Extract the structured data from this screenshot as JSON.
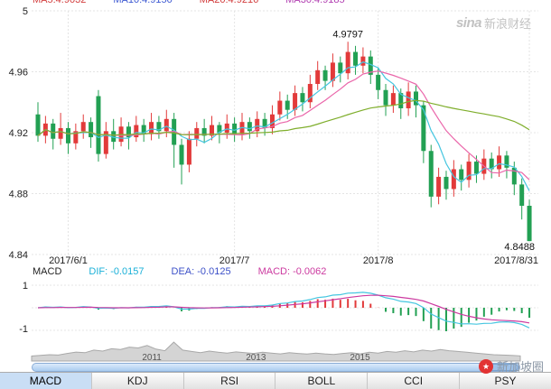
{
  "watermarks": {
    "sina": {
      "logo": "sina",
      "text": "新浪财经"
    },
    "bottom_right": {
      "text": "新加坡圈"
    }
  },
  "header": {
    "ma_labels": [
      {
        "text": "MA5:4.9032",
        "color": "#d23c3c"
      },
      {
        "text": "MA10:4.9150",
        "color": "#3c58d2"
      },
      {
        "text": "MA20:4.9216",
        "color": "#d23c3c"
      },
      {
        "text": "MA30:4.9185",
        "color": "#b03cb0"
      }
    ]
  },
  "indicator_row": {
    "name": "MACD",
    "values": [
      {
        "label": "DIF: -0.0157",
        "color": "#1ab0d8"
      },
      {
        "label": "DEA: -0.0125",
        "color": "#3c50c8"
      },
      {
        "label": "MACD: -0.0062",
        "color": "#cc3aa0"
      }
    ]
  },
  "chart_data": [
    {
      "type": "candlestick",
      "title": "",
      "ylim": [
        4.84,
        5.0
      ],
      "yticks": [
        {
          "label": "5",
          "value": 5.0
        },
        {
          "label": "4.96",
          "value": 4.96
        },
        {
          "label": "4.92",
          "value": 4.92
        },
        {
          "label": "4.88",
          "value": 4.88
        },
        {
          "label": "4.84",
          "value": 4.84
        }
      ],
      "xticks": [
        {
          "label": "2017/6/1",
          "index": 4
        },
        {
          "label": "2017/7",
          "index": 26
        },
        {
          "label": "2017/8",
          "index": 45
        },
        {
          "label": "2017/8/31",
          "index": 65
        }
      ],
      "annotations": [
        {
          "text": "4.9797",
          "index": 41,
          "pos": "high"
        },
        {
          "text": "4.8488",
          "index": 65,
          "pos": "low"
        }
      ],
      "colors": {
        "up": "#e23a3a",
        "down": "#22a053",
        "ma5": "#45c6e0",
        "ma10": "#ea66aa",
        "ma30": "#7fae2c"
      },
      "ma_windows": [
        5,
        10,
        30
      ],
      "candles": [
        [
          4.932,
          4.94,
          4.914,
          4.918
        ],
        [
          4.918,
          4.931,
          4.913,
          4.926
        ],
        [
          4.926,
          4.929,
          4.909,
          4.916
        ],
        [
          4.916,
          4.933,
          4.912,
          4.923
        ],
        [
          4.923,
          4.927,
          4.906,
          4.913
        ],
        [
          4.913,
          4.926,
          4.909,
          4.921
        ],
        [
          4.921,
          4.932,
          4.916,
          4.927
        ],
        [
          4.927,
          4.93,
          4.91,
          4.917
        ],
        [
          4.944,
          4.948,
          4.901,
          4.906
        ],
        [
          4.906,
          4.927,
          4.903,
          4.921
        ],
        [
          4.921,
          4.929,
          4.909,
          4.914
        ],
        [
          4.914,
          4.93,
          4.911,
          4.924
        ],
        [
          4.924,
          4.927,
          4.909,
          4.917
        ],
        [
          4.917,
          4.931,
          4.914,
          4.925
        ],
        [
          4.925,
          4.929,
          4.914,
          4.919
        ],
        [
          4.919,
          4.933,
          4.915,
          4.927
        ],
        [
          4.927,
          4.931,
          4.916,
          4.921
        ],
        [
          4.921,
          4.935,
          4.917,
          4.929
        ],
        [
          4.929,
          4.933,
          4.897,
          4.912
        ],
        [
          4.912,
          4.916,
          4.886,
          4.899
        ],
        [
          4.899,
          4.921,
          4.894,
          4.916
        ],
        [
          4.916,
          4.927,
          4.911,
          4.923
        ],
        [
          4.923,
          4.929,
          4.913,
          4.918
        ],
        [
          4.918,
          4.931,
          4.915,
          4.925
        ],
        [
          4.925,
          4.927,
          4.913,
          4.92
        ],
        [
          4.92,
          4.932,
          4.916,
          4.926
        ],
        [
          4.926,
          4.93,
          4.914,
          4.919
        ],
        [
          4.919,
          4.933,
          4.915,
          4.927
        ],
        [
          4.927,
          4.93,
          4.916,
          4.921
        ],
        [
          4.921,
          4.934,
          4.917,
          4.929
        ],
        [
          4.929,
          4.933,
          4.918,
          4.923
        ],
        [
          4.923,
          4.938,
          4.919,
          4.932
        ],
        [
          4.932,
          4.947,
          4.928,
          4.941
        ],
        [
          4.941,
          4.945,
          4.929,
          4.935
        ],
        [
          4.935,
          4.951,
          4.931,
          4.946
        ],
        [
          4.946,
          4.95,
          4.934,
          4.94
        ],
        [
          4.94,
          4.958,
          4.936,
          4.952
        ],
        [
          4.952,
          4.967,
          4.948,
          4.961
        ],
        [
          4.961,
          4.964,
          4.948,
          4.954
        ],
        [
          4.954,
          4.972,
          4.95,
          4.966
        ],
        [
          4.966,
          4.97,
          4.953,
          4.959
        ],
        [
          4.959,
          4.9797,
          4.955,
          4.973
        ],
        [
          4.973,
          4.977,
          4.958,
          4.964
        ],
        [
          4.964,
          4.976,
          4.959,
          4.97
        ],
        [
          4.97,
          4.974,
          4.952,
          4.958
        ],
        [
          4.958,
          4.963,
          4.942,
          4.948
        ],
        [
          4.948,
          4.952,
          4.931,
          4.938
        ],
        [
          4.938,
          4.951,
          4.933,
          4.946
        ],
        [
          4.946,
          4.949,
          4.929,
          4.936
        ],
        [
          4.936,
          4.953,
          4.931,
          4.947
        ],
        [
          4.947,
          4.951,
          4.93,
          4.938
        ],
        [
          4.938,
          4.941,
          4.9,
          4.908
        ],
        [
          4.908,
          4.912,
          4.871,
          4.878
        ],
        [
          4.878,
          4.897,
          4.873,
          4.891
        ],
        [
          4.891,
          4.895,
          4.876,
          4.883
        ],
        [
          4.883,
          4.902,
          4.878,
          4.896
        ],
        [
          4.896,
          4.899,
          4.882,
          4.889
        ],
        [
          4.889,
          4.906,
          4.884,
          4.901
        ],
        [
          4.901,
          4.905,
          4.887,
          4.893
        ],
        [
          4.893,
          4.909,
          4.889,
          4.903
        ],
        [
          4.903,
          4.907,
          4.89,
          4.896
        ],
        [
          4.896,
          4.911,
          4.891,
          4.905
        ],
        [
          4.905,
          4.908,
          4.89,
          4.897
        ],
        [
          4.897,
          4.901,
          4.879,
          4.886
        ],
        [
          4.886,
          4.89,
          4.863,
          4.872
        ],
        [
          4.872,
          4.876,
          4.8488,
          4.8488
        ]
      ]
    },
    {
      "type": "bar",
      "name": "MACD",
      "yticks": [
        "1",
        "-1"
      ],
      "latest": {
        "DIF": -0.0157,
        "DEA": -0.0125,
        "MACD": -0.0062
      },
      "colors": {
        "pos": "#e23a3a",
        "neg": "#22a053",
        "dif": "#45c6e0",
        "dea": "#cc3aa0"
      }
    },
    {
      "type": "area",
      "name": "navigator",
      "xticks": [
        {
          "label": "2011",
          "pos": 0.246
        },
        {
          "label": "2013",
          "pos": 0.459
        },
        {
          "label": "2015",
          "pos": 0.672
        }
      ],
      "values": [
        0.25,
        0.28,
        0.32,
        0.3,
        0.38,
        0.45,
        0.42,
        0.55,
        0.5,
        0.62,
        0.58,
        0.7,
        0.66,
        0.78,
        0.6,
        0.52,
        0.95,
        0.55,
        0.48,
        0.42,
        0.5,
        0.44,
        0.4,
        0.46,
        0.42,
        0.38,
        0.44,
        0.4,
        0.36,
        0.42,
        0.38,
        0.35,
        0.4,
        0.36,
        0.33,
        0.38,
        0.42,
        0.36,
        0.44,
        0.4,
        0.48,
        0.44,
        0.52,
        0.46,
        0.55,
        0.5,
        0.58,
        0.52,
        0.48,
        0.44,
        0.4,
        0.36,
        0.32,
        0.3,
        0.28,
        0.26
      ]
    }
  ],
  "tabs": [
    {
      "label": "MACD",
      "active": true
    },
    {
      "label": "KDJ",
      "active": false
    },
    {
      "label": "RSI",
      "active": false
    },
    {
      "label": "BOLL",
      "active": false
    },
    {
      "label": "CCI",
      "active": false
    },
    {
      "label": "PSY",
      "active": false
    }
  ]
}
